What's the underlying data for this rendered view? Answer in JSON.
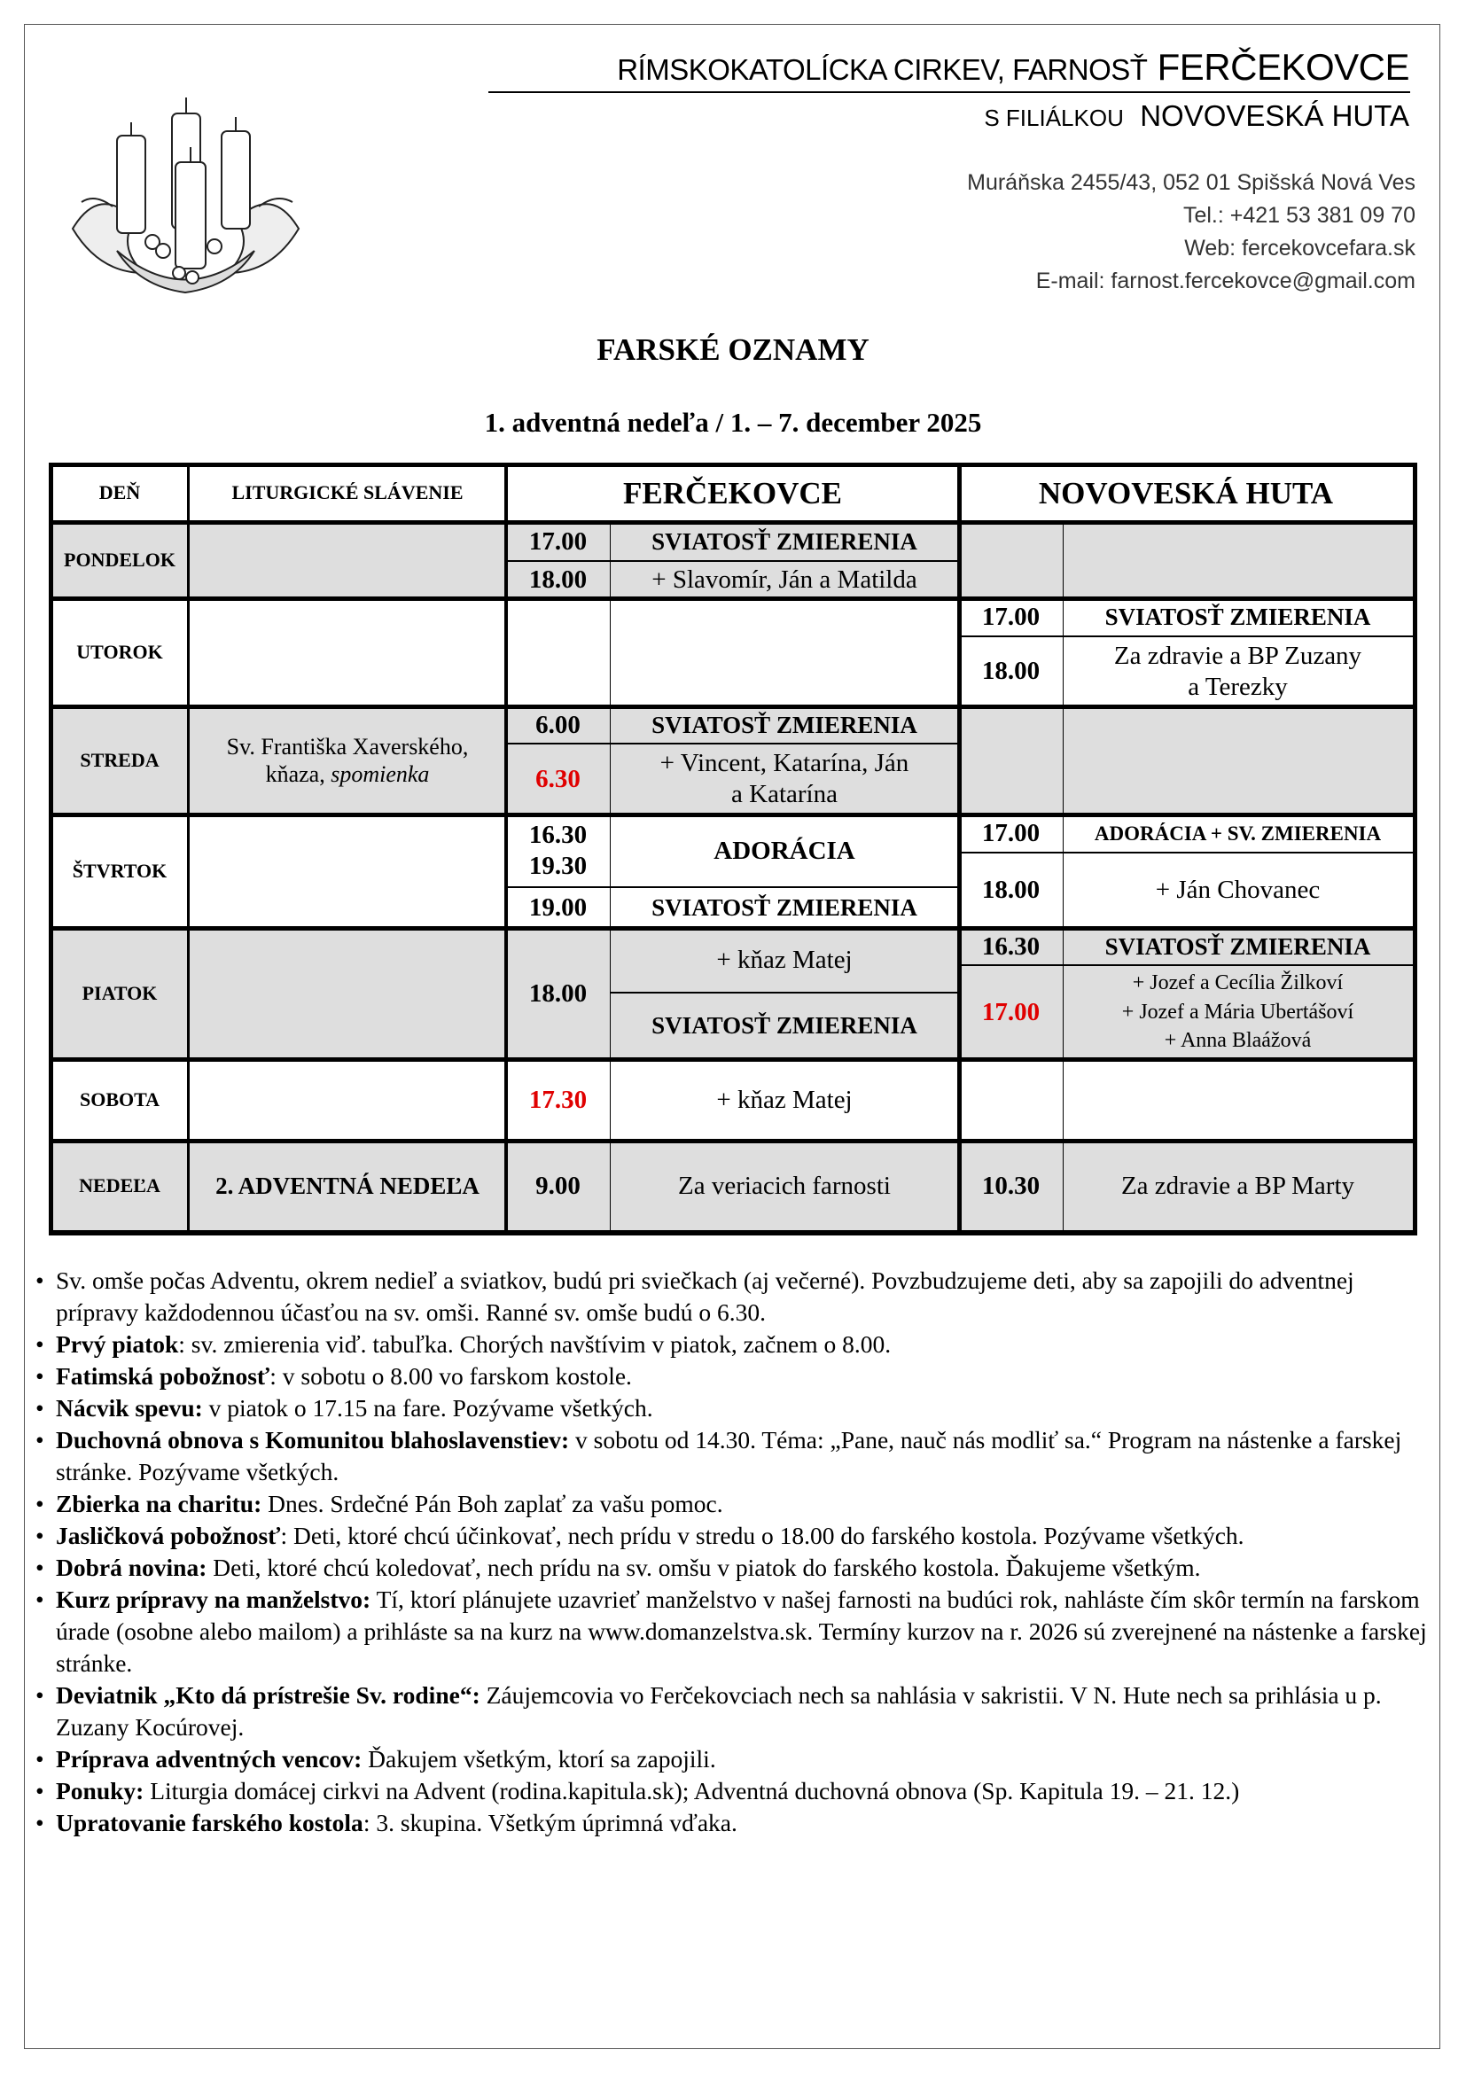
{
  "header": {
    "title_prefix": "Rímskokatolícka cirkev, farnosť",
    "title_parish": "FERČEKOVCE",
    "sub_prefix": "s filiálkou",
    "sub_filial": "NOVOVESKÁ HUTA",
    "address": "Muráňska 2455/43, 052 01 Spišská Nová Ves",
    "tel": "Tel.: +421 53 381 09 70",
    "web": "Web: fercekovcefara.sk",
    "email": "E-mail: farnost.fercekovce@gmail.com",
    "logo": "advent-wreath-illustration"
  },
  "doc_title": "FARSKÉ OZNAMY",
  "doc_subtitle": "1. adventná nedeľa / 1. – 7. december 2025",
  "table": {
    "headers": [
      "DEŇ",
      "LITURGICKÉ SLÁVENIE",
      "FERČEKOVCE",
      "NOVOVESKÁ HUTA"
    ],
    "highlight_color": "#e00000",
    "row_shading": "#dedede",
    "rows": {
      "pondelok": {
        "day": "PONDELOK",
        "f": [
          {
            "time": "17.00",
            "desc": "SVIATOSŤ ZMIERENIA"
          },
          {
            "time": "18.00",
            "desc": "+ Slavomír, Ján a Matilda"
          }
        ]
      },
      "utorok": {
        "day": "UTOROK",
        "n": [
          {
            "time": "17.00",
            "desc": "SVIATOSŤ ZMIERENIA"
          },
          {
            "time": "18.00",
            "desc1": "Za zdravie a BP Zuzany",
            "desc2": "a Terezky"
          }
        ]
      },
      "streda": {
        "day": "STREDA",
        "lit1": "Sv. Františka Xaverského,",
        "lit2": "kňaza,",
        "lit3": "spomienka",
        "f": [
          {
            "time": "6.00",
            "desc": "SVIATOSŤ ZMIERENIA"
          },
          {
            "time": "6.30",
            "desc1": "+ Vincent, Katarína, Ján",
            "desc2": "a Katarína"
          }
        ]
      },
      "stvrtok": {
        "day": "ŠTVRTOK",
        "f": [
          {
            "time1": "16.30",
            "time2": "19.30",
            "desc": "ADORÁCIA"
          },
          {
            "time": "19.00",
            "desc": "SVIATOSŤ ZMIERENIA"
          }
        ],
        "n": [
          {
            "time": "17.00",
            "desc": "ADORÁCIA + SV. ZMIERENIA"
          },
          {
            "time": "18.00",
            "desc": "+ Ján Chovanec"
          }
        ]
      },
      "piatok": {
        "day": "PIATOK",
        "f": {
          "time": "18.00",
          "desc1": "+ kňaz Matej",
          "desc2": "SVIATOSŤ ZMIERENIA"
        },
        "n": [
          {
            "time": "16.30",
            "desc": "SVIATOSŤ ZMIERENIA"
          },
          {
            "time": "17.00",
            "desc1": "+ Jozef a Cecília Žilkoví",
            "desc2": "+ Jozef a Mária Ubertášoví",
            "desc3": "+ Anna Blaážová"
          }
        ]
      },
      "sobota": {
        "day": "SOBOTA",
        "f": {
          "time": "17.30",
          "desc": "+ kňaz Matej"
        }
      },
      "nedela": {
        "day": "NEDEĽA",
        "lit": "2. ADVENTNÁ NEDEĽA",
        "f": {
          "time": "9.00",
          "desc": "Za veriacich farnosti"
        },
        "n": {
          "time": "10.30",
          "desc": "Za zdravie a BP Marty"
        }
      }
    }
  },
  "notes": [
    {
      "bold": "",
      "text": "Sv. omše počas Adventu, okrem nedieľ a sviatkov, budú pri sviečkach (aj večerné). Povzbudzujeme deti, aby sa zapojili do adventnej prípravy každodennou účasťou na sv. omši. Ranné sv. omše budú o 6.30."
    },
    {
      "bold": "Prvý piatok",
      "text": ": sv. zmierenia viď. tabuľka. Chorých navštívim v piatok, začnem o 8.00."
    },
    {
      "bold": "Fatimská pobožnosť",
      "text": ": v sobotu o 8.00 vo farskom kostole."
    },
    {
      "bold": "Nácvik spevu:",
      "text": " v piatok o 17.15 na fare. Pozývame všetkých."
    },
    {
      "bold": "Duchovná obnova s Komunitou blahoslavenstiev:",
      "text": " v sobotu od 14.30. Téma: „Pane, nauč nás modliť sa.“ Program na nástenke a farskej stránke. Pozývame všetkých."
    },
    {
      "bold": "Zbierka na charitu:",
      "text": " Dnes. Srdečné Pán Boh zaplať za vašu pomoc."
    },
    {
      "bold": "Jasličková pobožnosť",
      "text": ": Deti, ktoré chcú účinkovať, nech prídu v stredu o 18.00 do farského kostola. Pozývame všetkých."
    },
    {
      "bold": "Dobrá novina:",
      "text": " Deti, ktoré chcú koledovať, nech prídu na sv. omšu v piatok do farského kostola. Ďakujeme všetkým."
    },
    {
      "bold": "Kurz prípravy na manželstvo:",
      "text": " Tí, ktorí plánujete uzavrieť manželstvo v našej farnosti na budúci rok, nahláste čím skôr termín na farskom úrade (osobne alebo mailom) a prihláste sa na kurz na www.domanzelstva.sk. Termíny kurzov na r. 2026 sú zverejnené na nástenke a farskej stránke."
    },
    {
      "bold": "Deviatnik „Kto dá prístrešie Sv. rodine“:",
      "text": " Záujemcovia vo Ferčekovciach nech sa nahlásia v sakristii. V N. Hute nech sa prihlásia u p. Zuzany Kocúrovej."
    },
    {
      "bold": "Príprava adventných vencov:",
      "text": " Ďakujem všetkým, ktorí sa zapojili."
    },
    {
      "bold": "Ponuky:",
      "text": " Liturgia domácej cirkvi na Advent (rodina.kapitula.sk); Adventná duchovná obnova (Sp. Kapitula 19. – 21. 12.)"
    },
    {
      "bold": "Upratovanie farského kostola",
      "text": ": 3. skupina. Všetkým úprimná vďaka."
    }
  ]
}
